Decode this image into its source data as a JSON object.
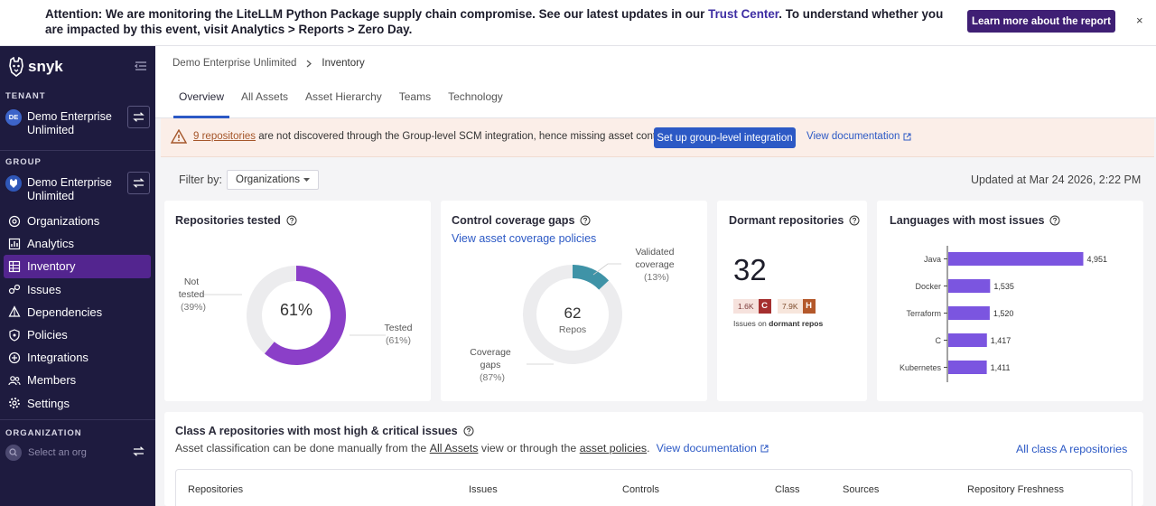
{
  "banner": {
    "text_before": "Attention: We are monitoring the LiteLLM Python Package supply chain compromise. See our latest updates in our ",
    "link": "Trust Center",
    "text_after": ". To understand whether you are impacted by this event, visit Analytics > Reports > Zero Day.",
    "button": "Learn more about the report",
    "close": "×"
  },
  "sidebar": {
    "logo": "snyk",
    "tenant_label": "TENANT",
    "tenant_avatar": "DE",
    "tenant_name": "Demo Enterprise Unlimited",
    "group_label": "GROUP",
    "group_name": "Demo Enterprise Unlimited",
    "nav": [
      {
        "label": "Organizations",
        "icon": "organizations-icon"
      },
      {
        "label": "Analytics",
        "icon": "analytics-icon"
      },
      {
        "label": "Inventory",
        "icon": "inventory-icon",
        "active": true
      },
      {
        "label": "Issues",
        "icon": "issues-icon"
      },
      {
        "label": "Dependencies",
        "icon": "dependencies-icon"
      },
      {
        "label": "Policies",
        "icon": "policies-icon"
      },
      {
        "label": "Integrations",
        "icon": "integrations-icon"
      },
      {
        "label": "Members",
        "icon": "members-icon"
      },
      {
        "label": "Settings",
        "icon": "settings-icon"
      }
    ],
    "org_label": "ORGANIZATION",
    "org_placeholder": "Select an org"
  },
  "header": {
    "breadcrumb": [
      "Demo Enterprise Unlimited",
      "Inventory"
    ],
    "tabs": [
      "Overview",
      "All Assets",
      "Asset Hierarchy",
      "Teams",
      "Technology"
    ]
  },
  "alert": {
    "link_text": "9 repositories",
    "text": " are not discovered through the Group-level SCM integration, hence missing asset context.",
    "button": "Set up group-level integration",
    "doc_link": "View documentation"
  },
  "filter": {
    "label": "Filter by:",
    "value": "Organizations",
    "updated": "Updated at Mar 24 2026, 2:22 PM"
  },
  "cards": {
    "tested": {
      "title": "Repositories tested",
      "center": "61%",
      "tested_label": "Tested",
      "tested_pct": "(61%)",
      "not_label_1": "Not",
      "not_label_2": "tested",
      "not_pct": "(39%)",
      "tested_value": 61
    },
    "coverage": {
      "title": "Control coverage gaps",
      "link": "View asset coverage policies",
      "center_num": "62",
      "center_sub": "Repos",
      "validated_1": "Validated",
      "validated_2": "coverage",
      "validated_pct": "(13%)",
      "gaps_1": "Coverage",
      "gaps_2": "gaps",
      "gaps_pct": "(87%)",
      "validated_value": 13
    },
    "dormant": {
      "title": "Dormant repositories",
      "count": "32",
      "critical_count": "1.6K",
      "critical_letter": "C",
      "high_count": "7.9K",
      "high_letter": "H",
      "caption_prefix": "Issues on ",
      "caption_bold": "dormant repos"
    },
    "languages": {
      "title": "Languages with most issues"
    }
  },
  "chart_data": {
    "type": "bar",
    "orientation": "horizontal",
    "title": "Languages with most issues",
    "categories": [
      "Java",
      "Docker",
      "Terraform",
      "C",
      "Kubernetes"
    ],
    "values": [
      4951,
      1535,
      1520,
      1417,
      1411
    ],
    "labels": [
      "4,951",
      "1,535",
      "1,520",
      "1,417",
      "1,411"
    ],
    "xlim": [
      0,
      5200
    ],
    "color": "#7b55e0"
  },
  "class_a": {
    "title": "Class A repositories with most high & critical issues",
    "desc_1": "Asset classification can be done manually from the ",
    "link_all_assets": "All Assets",
    "desc_2": " view or through the ",
    "link_policies": "asset policies",
    "desc_3": ".",
    "doc_link": "View documentation",
    "all_link": "All class A repositories",
    "columns": [
      "Repositories",
      "Issues",
      "Controls",
      "Class",
      "Sources",
      "Repository Freshness"
    ]
  },
  "colors": {
    "sidebar": "#1e1b3f",
    "active_nav": "#53258f",
    "accent": "#2c59c5",
    "donut_purple": "#8b3fc8",
    "donut_teal": "#3f93a7",
    "critical": "#a52f2f",
    "high": "#b4582a"
  }
}
